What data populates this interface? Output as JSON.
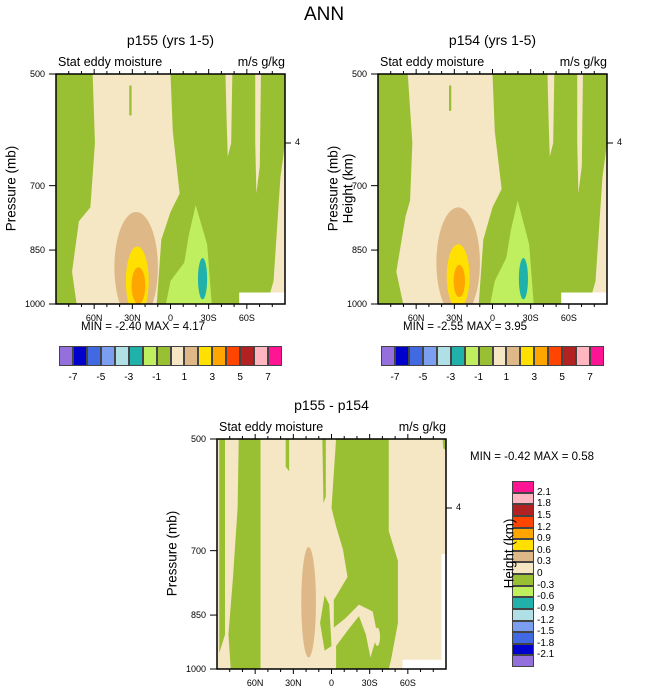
{
  "title": "ANN",
  "colors": {
    "fills": [
      "#9370DB",
      "#0000CD",
      "#4169E1",
      "#7B9EF0",
      "#B0E0E6",
      "#20B2AA",
      "#BFEF5F",
      "#99BF32",
      "#F5E6C4",
      "#DEB887",
      "#FFE000",
      "#FFA500",
      "#FF4500",
      "#B22222",
      "#FFB6C1",
      "#FF1493"
    ]
  },
  "panels": [
    {
      "title": "p155 (yrs 1-5)",
      "left_label": "Stat eddy moisture",
      "right_label": "m/s g/kg",
      "y_label": "Pressure (mb)",
      "y2_label": "Height (km)",
      "minmax": "MIN =  -2.40  MAX =   4.17"
    },
    {
      "title": "p154 (yrs 1-5)",
      "left_label": "Stat eddy moisture",
      "right_label": "m/s g/kg",
      "y_label": "Pressure (mb)",
      "y2_label": "Height (km)",
      "minmax": "MIN =  -2.55  MAX =   3.95"
    },
    {
      "title": "p155 - p154",
      "left_label": "Stat eddy moisture",
      "right_label": "m/s g/kg",
      "y_label": "Pressure (mb)",
      "y2_label": "Height (km)",
      "minmax": "MIN =  -0.42  MAX =   0.58"
    }
  ],
  "chart_data": [
    {
      "type": "heatmap",
      "title": "p155 (yrs 1-5)",
      "subtitle_left": "Stat eddy moisture",
      "subtitle_right": "m/s g/kg",
      "xlabel": "",
      "ylabel": "Pressure (mb)",
      "y2label": "Height (km)",
      "x_ticks": [
        "60N",
        "30N",
        "0",
        "30S",
        "60S"
      ],
      "y_ticks": [
        "500",
        "700",
        "850",
        "1000"
      ],
      "y2_ticks": [
        "4"
      ],
      "xlim": [
        90,
        -90
      ],
      "ylim": [
        500,
        1000
      ],
      "levels": [
        -7,
        -6,
        -5,
        -4,
        -3,
        -2,
        -1,
        0,
        1,
        2,
        3,
        4,
        5,
        6,
        7
      ],
      "colorbar_labels": [
        "-7",
        "-5",
        "-3",
        "-1",
        "1",
        "3",
        "5",
        "7"
      ],
      "min": -2.4,
      "max": 4.17
    },
    {
      "type": "heatmap",
      "title": "p154 (yrs 1-5)",
      "subtitle_left": "Stat eddy moisture",
      "subtitle_right": "m/s g/kg",
      "xlabel": "",
      "ylabel": "Pressure (mb)",
      "y2label": "Height (km)",
      "x_ticks": [
        "60N",
        "30N",
        "0",
        "30S",
        "60S"
      ],
      "y_ticks": [
        "500",
        "700",
        "850",
        "1000"
      ],
      "y2_ticks": [
        "4"
      ],
      "xlim": [
        90,
        -90
      ],
      "ylim": [
        500,
        1000
      ],
      "levels": [
        -7,
        -6,
        -5,
        -4,
        -3,
        -2,
        -1,
        0,
        1,
        2,
        3,
        4,
        5,
        6,
        7
      ],
      "colorbar_labels": [
        "-7",
        "-5",
        "-3",
        "-1",
        "1",
        "3",
        "5",
        "7"
      ],
      "min": -2.55,
      "max": 3.95
    },
    {
      "type": "heatmap",
      "title": "p155 - p154",
      "subtitle_left": "Stat eddy moisture",
      "subtitle_right": "m/s g/kg",
      "xlabel": "",
      "ylabel": "Pressure (mb)",
      "y2label": "Height (km)",
      "x_ticks": [
        "60N",
        "30N",
        "0",
        "30S",
        "60S"
      ],
      "y_ticks": [
        "500",
        "700",
        "850",
        "1000"
      ],
      "y2_ticks": [
        "4"
      ],
      "xlim": [
        90,
        -90
      ],
      "ylim": [
        500,
        1000
      ],
      "levels": [
        -2.1,
        -1.8,
        -1.5,
        -1.2,
        -0.9,
        -0.6,
        -0.3,
        0,
        0.3,
        0.6,
        0.9,
        1.2,
        1.5,
        1.8,
        2.1
      ],
      "colorbar_labels": [
        "-2.1",
        "-1.8",
        "-1.5",
        "-1.2",
        "-0.9",
        "-0.6",
        "-0.3",
        "0",
        "0.3",
        "0.6",
        "0.9",
        "1.2",
        "1.5",
        "1.8",
        "2.1"
      ],
      "min": -0.42,
      "max": 0.58
    }
  ]
}
